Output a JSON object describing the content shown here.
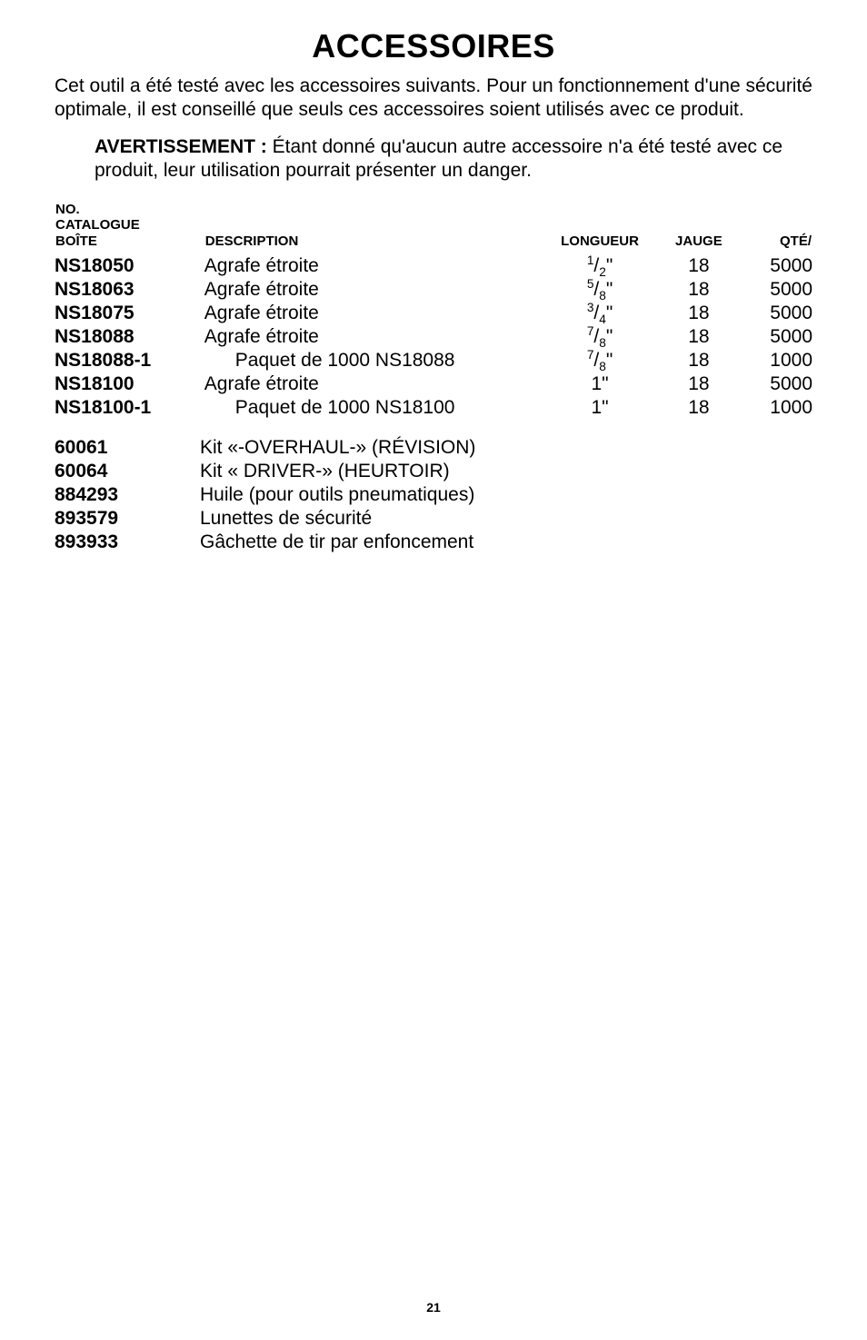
{
  "title": "ACCESSOIRES",
  "intro": "Cet outil a été testé avec les accessoires suivants. Pour un fonctionnement d'une sécurité optimale, il est conseillé que seuls ces accessoires soient utilisés avec ce produit.",
  "warning_label": "AVERTISSEMENT : ",
  "warning_text": "Étant donné qu'aucun autre accessoire n'a été testé avec ce produit, leur utilisation pourrait présenter un danger.",
  "table": {
    "headers": {
      "catalogue": "NO.\nCATALOGUE\nBOÎTE",
      "description": "DESCRIPTION",
      "longueur": "LONGUEUR",
      "jauge": "JAUGE",
      "qte": "QTÉ/"
    },
    "rows": [
      {
        "cat": "NS18050",
        "desc": "Agrafe étroite",
        "indent": false,
        "long_num": "1",
        "long_den": "2",
        "long_plain": "",
        "jauge": "18",
        "qte": "5000"
      },
      {
        "cat": "NS18063",
        "desc": "Agrafe étroite",
        "indent": false,
        "long_num": "5",
        "long_den": "8",
        "long_plain": "",
        "jauge": "18",
        "qte": "5000"
      },
      {
        "cat": "NS18075",
        "desc": "Agrafe étroite",
        "indent": false,
        "long_num": "3",
        "long_den": "4",
        "long_plain": "",
        "jauge": "18",
        "qte": "5000"
      },
      {
        "cat": "NS18088",
        "desc": "Agrafe étroite",
        "indent": false,
        "long_num": "7",
        "long_den": "8",
        "long_plain": "",
        "jauge": "18",
        "qte": "5000"
      },
      {
        "cat": "NS18088-1",
        "desc": "Paquet de 1000 NS18088",
        "indent": true,
        "long_num": "7",
        "long_den": "8",
        "long_plain": "",
        "jauge": "18",
        "qte": "1000"
      },
      {
        "cat": "NS18100",
        "desc": "Agrafe étroite",
        "indent": false,
        "long_num": "",
        "long_den": "",
        "long_plain": "1\"",
        "jauge": "18",
        "qte": "5000"
      },
      {
        "cat": "NS18100-1",
        "desc": "Paquet de 1000 NS18100",
        "indent": true,
        "long_num": "",
        "long_den": "",
        "long_plain": "1\"",
        "jauge": "18",
        "qte": "1000"
      }
    ]
  },
  "accessories": [
    {
      "part": "60061",
      "desc": "Kit «-OVERHAUL-» (RÉVISION)"
    },
    {
      "part": "60064",
      "desc": "Kit « DRIVER-» (HEURTOIR)"
    },
    {
      "part": "884293",
      "desc": "Huile (pour outils pneumatiques)"
    },
    {
      "part": "893579",
      "desc": "Lunettes de sécurité"
    },
    {
      "part": "893933",
      "desc": "Gâchette de tir par enfoncement"
    }
  ],
  "page_number": "21"
}
